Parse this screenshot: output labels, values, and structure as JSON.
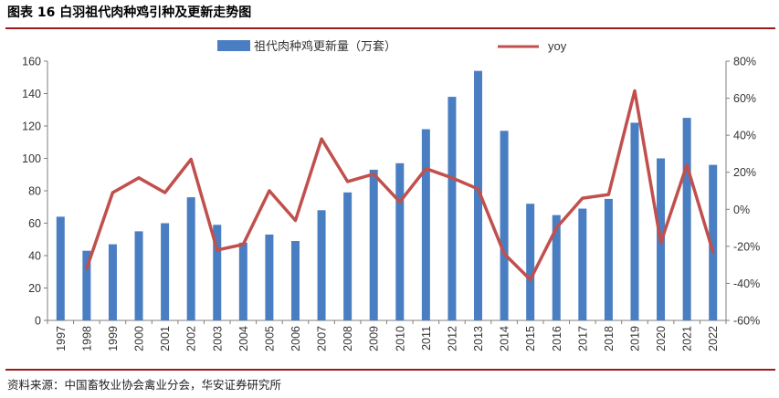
{
  "title": "图表 16  白羽祖代肉种鸡引种及更新走势图",
  "source": "资料来源：中国畜牧业协会禽业分会，华安证券研究所",
  "chart_data": {
    "type": "bar+line",
    "categories": [
      "1997",
      "1998",
      "1999",
      "2000",
      "2001",
      "2002",
      "2003",
      "2004",
      "2005",
      "2006",
      "2007",
      "2008",
      "2009",
      "2010",
      "2011",
      "2012",
      "2013",
      "2014",
      "2015",
      "2016",
      "2017",
      "2018",
      "2019",
      "2020",
      "2021",
      "2022"
    ],
    "series": [
      {
        "name": "祖代肉种鸡更新量（万套）",
        "type": "bar",
        "axis": "left",
        "color": "#4a7ec2",
        "values": [
          64,
          43,
          47,
          55,
          60,
          76,
          59,
          48,
          53,
          49,
          68,
          79,
          93,
          97,
          118,
          138,
          154,
          117,
          72,
          65,
          69,
          75,
          122,
          100,
          125,
          96
        ]
      },
      {
        "name": "yoy",
        "type": "line",
        "axis": "right",
        "color": "#c0504d",
        "values": [
          null,
          -32,
          9,
          17,
          9,
          27,
          -22,
          -19,
          10,
          -6,
          38,
          15,
          19,
          4,
          22,
          17,
          11,
          -24,
          -38,
          -10,
          6,
          8,
          64,
          -18,
          24,
          -23
        ]
      }
    ],
    "ylim_left": [
      0,
      160
    ],
    "yticks_left": [
      0,
      20,
      40,
      60,
      80,
      100,
      120,
      140,
      160
    ],
    "ylim_right": [
      -60,
      80
    ],
    "yticks_right": [
      "-60%",
      "-40%",
      "-20%",
      "0%",
      "20%",
      "40%",
      "60%",
      "80%"
    ],
    "legend_position": "top-center",
    "grid": false
  }
}
